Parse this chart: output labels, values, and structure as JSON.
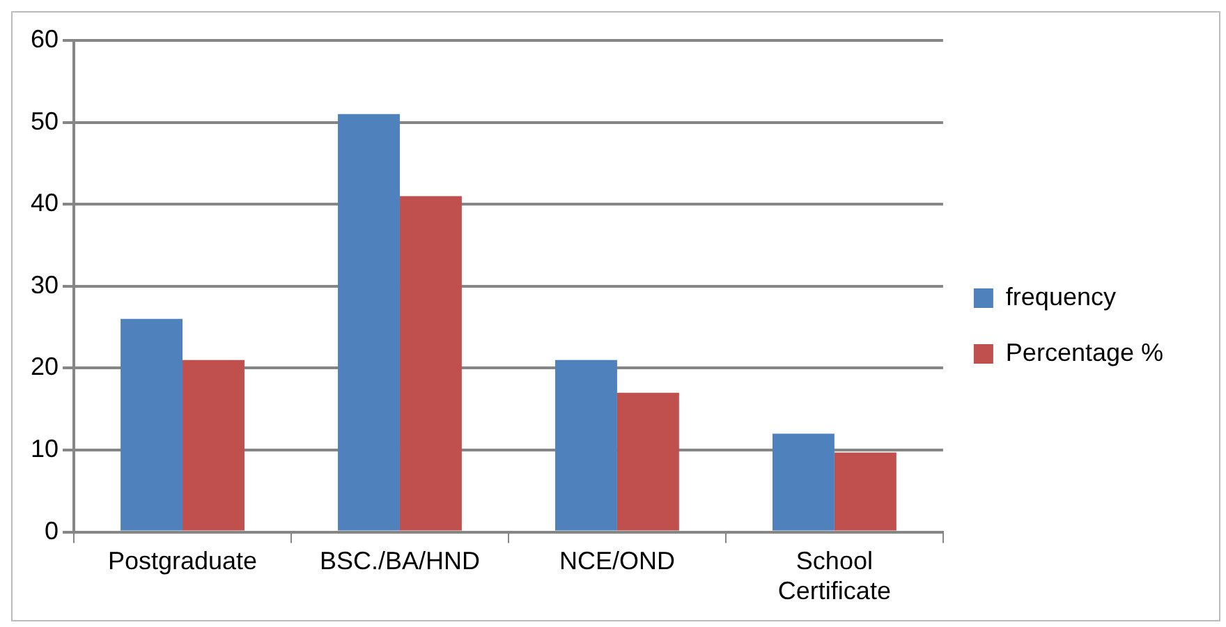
{
  "chart_data": {
    "type": "bar",
    "categories": [
      "Postgraduate",
      "BSC./BA/HND",
      "NCE/OND",
      "School Certificate"
    ],
    "series": [
      {
        "name": "frequency",
        "color": "#4f81bd",
        "values": [
          26,
          51,
          21,
          12
        ]
      },
      {
        "name": "Percentage %",
        "color": "#c0504d",
        "values": [
          21,
          41,
          17,
          9.7
        ]
      }
    ],
    "ylim": [
      0,
      60
    ],
    "yticks": [
      0,
      10,
      20,
      30,
      40,
      50,
      60
    ],
    "grid": "y",
    "legend": "right"
  }
}
